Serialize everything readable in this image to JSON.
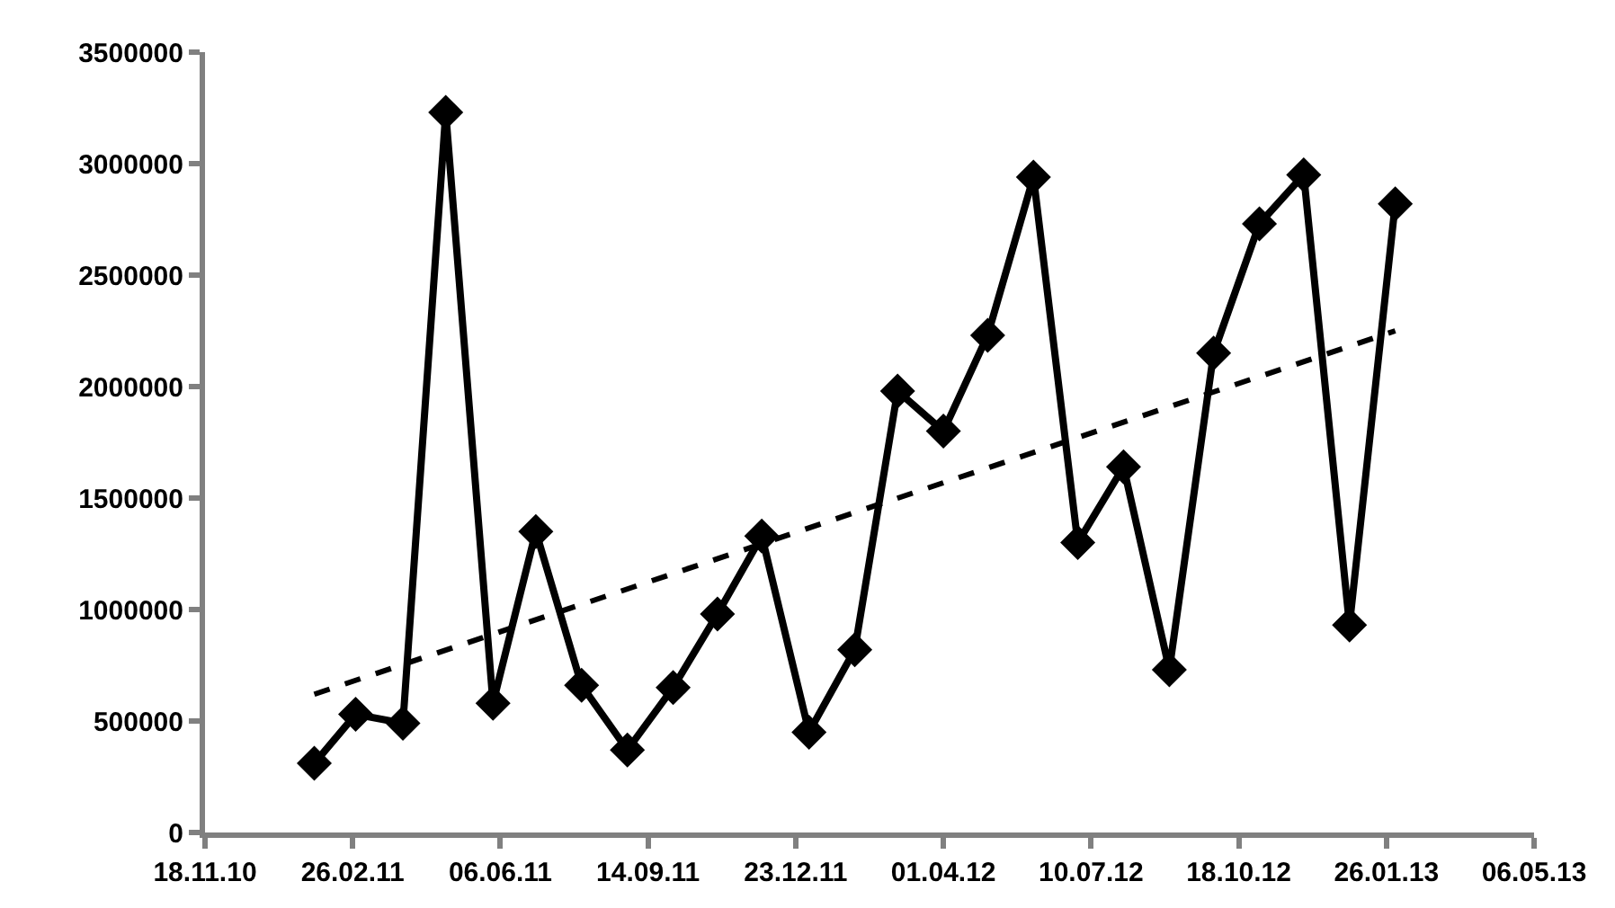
{
  "chart_data": {
    "type": "line",
    "series": [
      {
        "color": "#000000",
        "marker": "diamond",
        "line_style": "solid",
        "x": [
          "2011-01-31",
          "2011-02-28",
          "2011-04-01",
          "2011-04-30",
          "2011-06-01",
          "2011-06-30",
          "2011-07-31",
          "2011-08-31",
          "2011-10-01",
          "2011-10-31",
          "2011-11-30",
          "2012-01-01",
          "2012-02-01",
          "2012-03-01",
          "2012-04-01",
          "2012-05-01",
          "2012-06-01",
          "2012-07-01",
          "2012-08-01",
          "2012-09-01",
          "2012-10-01",
          "2012-11-01",
          "2012-12-01",
          "2013-01-01",
          "2013-02-01"
        ],
        "values": [
          310000,
          530000,
          490000,
          3230000,
          580000,
          1350000,
          660000,
          370000,
          650000,
          980000,
          1330000,
          450000,
          820000,
          1980000,
          1800000,
          2230000,
          2940000,
          1300000,
          1640000,
          730000,
          2150000,
          2730000,
          2950000,
          930000,
          2820000
        ]
      },
      {
        "type": "line",
        "color": "#000000",
        "marker": "none",
        "line_style": "dashed",
        "x": [
          "2011-01-31",
          "2013-02-01"
        ],
        "values": [
          620000,
          2250000
        ]
      }
    ],
    "xlim": [
      "2010-11-18",
      "2013-05-06"
    ],
    "xticks": [
      {
        "value": "2010-11-18",
        "label": "18.11.10"
      },
      {
        "value": "2011-02-26",
        "label": "26.02.11"
      },
      {
        "value": "2011-06-06",
        "label": "06.06.11"
      },
      {
        "value": "2011-09-14",
        "label": "14.09.11"
      },
      {
        "value": "2011-12-23",
        "label": "23.12.11"
      },
      {
        "value": "2012-04-01",
        "label": "01.04.12"
      },
      {
        "value": "2012-07-10",
        "label": "10.07.12"
      },
      {
        "value": "2012-10-18",
        "label": "18.10.12"
      },
      {
        "value": "2013-01-26",
        "label": "26.01.13"
      },
      {
        "value": "2013-05-06",
        "label": "06.05.13"
      }
    ],
    "ylim": [
      0,
      3500000
    ],
    "yticks": [
      0,
      500000,
      1000000,
      1500000,
      2000000,
      2500000,
      3000000,
      3500000
    ],
    "grid": false
  }
}
